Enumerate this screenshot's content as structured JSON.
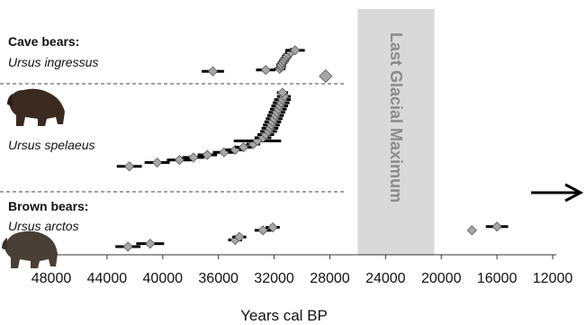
{
  "chart_data": {
    "type": "scatter",
    "title": "",
    "xlabel": "Years cal BP",
    "ylabel": "",
    "x_reversed": true,
    "xlim": [
      48000,
      12000
    ],
    "xticks": [
      "48000",
      "44000",
      "40000",
      "36000",
      "32000",
      "28000",
      "24000",
      "20000",
      "16000",
      "12000"
    ],
    "grid": false,
    "legend": "none",
    "colors": {
      "marker_fill": "#a8a8a8",
      "marker_edge": "#555555",
      "error_bar": "#000000",
      "lgm_band": "#d9d9d9",
      "lgm_text": "#8a8a8a"
    },
    "shaded_region": {
      "label": "Last Glacial Maximum",
      "from": 26000,
      "to": 20500
    },
    "arrow": "right",
    "groups": [
      {
        "title": "Cave bears:",
        "name": "Ursus ingressus"
      },
      {
        "name": "Ursus spelaeus"
      },
      {
        "title": "Brown bears:",
        "name": "Ursus arctos"
      }
    ],
    "series": [
      {
        "group": 0,
        "points": [
          {
            "x": 36400,
            "y": 0.86,
            "err": 800
          },
          {
            "x": 32600,
            "y": 0.9,
            "err": 700
          },
          {
            "x": 31600,
            "y": 0.93,
            "err": 400
          },
          {
            "x": 31500,
            "y": 0.99,
            "err": 350
          },
          {
            "x": 31500,
            "y": 1.05,
            "err": 350
          },
          {
            "x": 31400,
            "y": 1.11,
            "err": 350
          },
          {
            "x": 31300,
            "y": 1.17,
            "err": 350
          },
          {
            "x": 31200,
            "y": 1.23,
            "err": 350
          },
          {
            "x": 31100,
            "y": 1.29,
            "err": 350
          },
          {
            "x": 31000,
            "y": 1.35,
            "err": 350
          },
          {
            "x": 30800,
            "y": 1.41,
            "err": 400
          },
          {
            "x": 30500,
            "y": 1.47,
            "err": 700
          },
          {
            "x": 28300,
            "y": 0.72,
            "err": 0
          }
        ]
      },
      {
        "group": 1,
        "points": [
          {
            "x": 42400,
            "y": 0.9,
            "err": 900
          },
          {
            "x": 40400,
            "y": 0.96,
            "err": 900
          },
          {
            "x": 38800,
            "y": 1.0,
            "err": 900
          },
          {
            "x": 37800,
            "y": 1.04,
            "err": 800
          },
          {
            "x": 36800,
            "y": 1.08,
            "err": 700
          },
          {
            "x": 35600,
            "y": 1.12,
            "err": 800
          },
          {
            "x": 34800,
            "y": 1.16,
            "err": 700
          },
          {
            "x": 34200,
            "y": 1.2,
            "err": 600
          },
          {
            "x": 33500,
            "y": 1.25,
            "err": 500
          },
          {
            "x": 33200,
            "y": 1.3,
            "err": 1700
          },
          {
            "x": 32800,
            "y": 1.35,
            "err": 600
          },
          {
            "x": 32600,
            "y": 1.4,
            "err": 600
          },
          {
            "x": 32400,
            "y": 1.45,
            "err": 600
          },
          {
            "x": 32300,
            "y": 1.5,
            "err": 600
          },
          {
            "x": 32200,
            "y": 1.55,
            "err": 600
          },
          {
            "x": 32100,
            "y": 1.6,
            "err": 600
          },
          {
            "x": 32000,
            "y": 1.65,
            "err": 600
          },
          {
            "x": 31900,
            "y": 1.7,
            "err": 600
          },
          {
            "x": 31800,
            "y": 1.75,
            "err": 600
          },
          {
            "x": 31700,
            "y": 1.8,
            "err": 600
          },
          {
            "x": 31600,
            "y": 1.85,
            "err": 600
          },
          {
            "x": 31500,
            "y": 1.9,
            "err": 600
          },
          {
            "x": 31400,
            "y": 1.95,
            "err": 600
          },
          {
            "x": 31300,
            "y": 2.0,
            "err": 500
          },
          {
            "x": 31400,
            "y": 2.06,
            "err": 400
          }
        ]
      },
      {
        "group": 2,
        "points": [
          {
            "x": 42500,
            "y": 0.72,
            "err": 900
          },
          {
            "x": 40900,
            "y": 0.8,
            "err": 1000
          },
          {
            "x": 34800,
            "y": 0.9,
            "err": 500
          },
          {
            "x": 34500,
            "y": 0.98,
            "err": 500
          },
          {
            "x": 32800,
            "y": 1.16,
            "err": 600
          },
          {
            "x": 32100,
            "y": 1.24,
            "err": 500
          },
          {
            "x": 17800,
            "y": 1.16,
            "err": 0
          },
          {
            "x": 16000,
            "y": 1.26,
            "err": 800
          }
        ]
      }
    ]
  }
}
